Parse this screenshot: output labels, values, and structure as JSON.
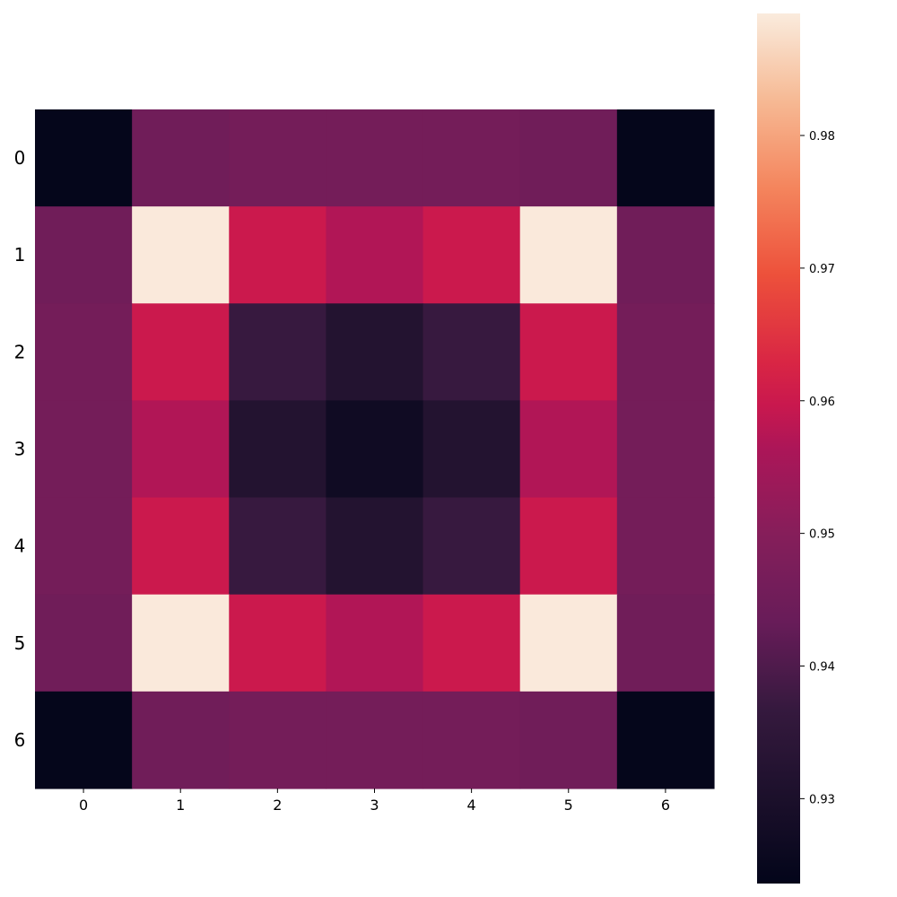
{
  "chart_data": {
    "type": "heatmap",
    "x_labels": [
      "0",
      "1",
      "2",
      "3",
      "4",
      "5",
      "6"
    ],
    "y_labels": [
      "0",
      "1",
      "2",
      "3",
      "4",
      "5",
      "6"
    ],
    "values": [
      [
        0.924,
        0.945,
        0.946,
        0.946,
        0.946,
        0.945,
        0.924
      ],
      [
        0.945,
        0.989,
        0.96,
        0.957,
        0.96,
        0.989,
        0.945
      ],
      [
        0.946,
        0.96,
        0.937,
        0.932,
        0.937,
        0.96,
        0.946
      ],
      [
        0.946,
        0.957,
        0.932,
        0.927,
        0.932,
        0.957,
        0.946
      ],
      [
        0.946,
        0.96,
        0.937,
        0.932,
        0.937,
        0.96,
        0.946
      ],
      [
        0.945,
        0.989,
        0.96,
        0.957,
        0.96,
        0.989,
        0.945
      ],
      [
        0.924,
        0.945,
        0.946,
        0.946,
        0.946,
        0.945,
        0.924
      ]
    ],
    "vmin": 0.9236,
    "vmax": 0.9892,
    "colormap": "rocket",
    "colorbar": {
      "ticks": [
        0.93,
        0.94,
        0.95,
        0.96,
        0.97,
        0.98
      ],
      "tick_labels": [
        "0.93",
        "0.94",
        "0.95",
        "0.96",
        "0.97",
        "0.98"
      ],
      "placement": "right"
    }
  }
}
